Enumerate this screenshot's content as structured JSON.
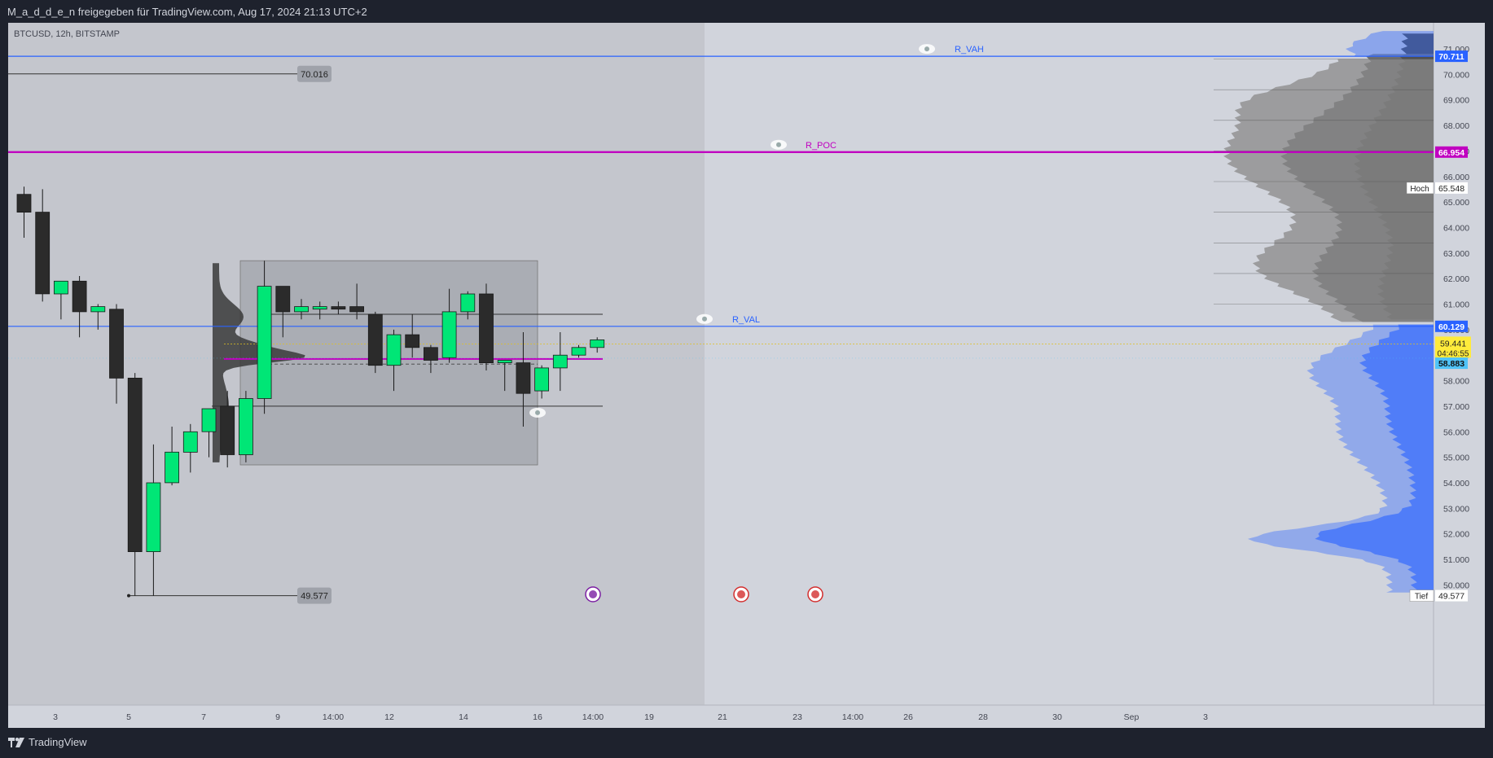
{
  "header": {
    "publish_line": "M_a_d_d_e_n freigegeben für TradingView.com, Aug 17, 2024 21:13 UTC+2"
  },
  "footer": {
    "brand": "TradingView",
    "brand_icon": "tradingview-logo-icon"
  },
  "chart_data": {
    "type": "candlestick",
    "title": "BTCUSD, 12h, BITSTAMP",
    "y_range": [
      49200,
      71600
    ],
    "x_tick_labels": [
      "3",
      "5",
      "7",
      "9",
      "14:00",
      "12",
      "14",
      "16",
      "14:00",
      "19",
      "21",
      "23",
      "14:00",
      "26",
      "28",
      "30",
      "Sep",
      "3"
    ],
    "y_tick_labels": [
      "71.000",
      "70.000",
      "69.000",
      "68.000",
      "67.000",
      "66.000",
      "65.000",
      "64.000",
      "63.000",
      "62.000",
      "61.000",
      "60.000",
      "59.000",
      "58.000",
      "57.000",
      "56.000",
      "55.000",
      "54.000",
      "53.000",
      "52.000",
      "51.000",
      "50.000"
    ],
    "y_tick_values": [
      71000,
      70000,
      69000,
      68000,
      67000,
      66000,
      65000,
      64000,
      63000,
      62000,
      61000,
      60000,
      59000,
      58000,
      57000,
      56000,
      55000,
      54000,
      53000,
      52000,
      51000,
      50000
    ],
    "candles": [
      {
        "o": 65300,
        "h": 65600,
        "l": 63600,
        "c": 64600
      },
      {
        "o": 64600,
        "h": 65500,
        "l": 61100,
        "c": 61400
      },
      {
        "o": 61400,
        "h": 61900,
        "l": 60400,
        "c": 61900
      },
      {
        "o": 61900,
        "h": 62100,
        "l": 59700,
        "c": 60700
      },
      {
        "o": 60700,
        "h": 61000,
        "l": 60000,
        "c": 60900
      },
      {
        "o": 60800,
        "h": 61000,
        "l": 57100,
        "c": 58100
      },
      {
        "o": 58100,
        "h": 58300,
        "l": 49577,
        "c": 51300
      },
      {
        "o": 51300,
        "h": 55500,
        "l": 49577,
        "c": 54000
      },
      {
        "o": 54000,
        "h": 56200,
        "l": 53900,
        "c": 55200
      },
      {
        "o": 55200,
        "h": 56300,
        "l": 54400,
        "c": 56000
      },
      {
        "o": 56000,
        "h": 56900,
        "l": 55000,
        "c": 56900
      },
      {
        "o": 57000,
        "h": 57600,
        "l": 54600,
        "c": 55100
      },
      {
        "o": 55100,
        "h": 57600,
        "l": 54800,
        "c": 57300
      },
      {
        "o": 57300,
        "h": 62700,
        "l": 56700,
        "c": 61700
      },
      {
        "o": 61700,
        "h": 61700,
        "l": 59700,
        "c": 60700
      },
      {
        "o": 60700,
        "h": 61200,
        "l": 60400,
        "c": 60900
      },
      {
        "o": 60800,
        "h": 61100,
        "l": 60400,
        "c": 60900
      },
      {
        "o": 60900,
        "h": 61100,
        "l": 60600,
        "c": 60800
      },
      {
        "o": 60900,
        "h": 61800,
        "l": 60400,
        "c": 60700
      },
      {
        "o": 60600,
        "h": 60700,
        "l": 58300,
        "c": 58600
      },
      {
        "o": 58600,
        "h": 60000,
        "l": 57600,
        "c": 59800
      },
      {
        "o": 59800,
        "h": 60600,
        "l": 58900,
        "c": 59300
      },
      {
        "o": 59300,
        "h": 59400,
        "l": 58300,
        "c": 58800
      },
      {
        "o": 58900,
        "h": 61600,
        "l": 58700,
        "c": 60700
      },
      {
        "o": 60700,
        "h": 61500,
        "l": 60400,
        "c": 61400
      },
      {
        "o": 61400,
        "h": 61800,
        "l": 58400,
        "c": 58700
      },
      {
        "o": 58700,
        "h": 58700,
        "l": 57600,
        "c": 58800
      },
      {
        "o": 58700,
        "h": 59900,
        "l": 56200,
        "c": 57500
      },
      {
        "o": 57600,
        "h": 58600,
        "l": 57300,
        "c": 58500
      },
      {
        "o": 58500,
        "h": 59900,
        "l": 57600,
        "c": 59000
      },
      {
        "o": 59000,
        "h": 59400,
        "l": 58900,
        "c": 59300
      },
      {
        "o": 59300,
        "h": 59700,
        "l": 59100,
        "c": 59600
      }
    ],
    "levels": [
      {
        "name": "R_VAH",
        "value": 70711,
        "label": "70.711",
        "color": "#2962ff"
      },
      {
        "name": "R_POC",
        "value": 66954,
        "label": "66.954",
        "color": "#c000c0"
      },
      {
        "name": "R_VAL",
        "value": 60129,
        "label": "60.129",
        "color": "#2962ff"
      }
    ],
    "price_tags": {
      "current": "59.441",
      "countdown": "04:46:55",
      "pivot": "58.883",
      "high_word": "Hoch",
      "high_value": "65.548",
      "low_word": "Tief",
      "low_value": "49.577"
    },
    "annotations": {
      "box_high": "70.016",
      "box_low": "49.577"
    },
    "range_box": {
      "high": 62700,
      "low": 54700,
      "upper_line": 60600,
      "lower_line": 57000,
      "poc": 58600
    },
    "colors": {
      "bull": "#00e676",
      "bear": "#2b2b2b",
      "bg_left": "#c4c6cd",
      "bg_right": "#d1d4dc",
      "blue_axis_tag": "#2962ff",
      "magenta_axis_tag": "#c000c0",
      "current_tag": "#ffeb3b",
      "pivot_tag": "#4fc3f7"
    }
  }
}
